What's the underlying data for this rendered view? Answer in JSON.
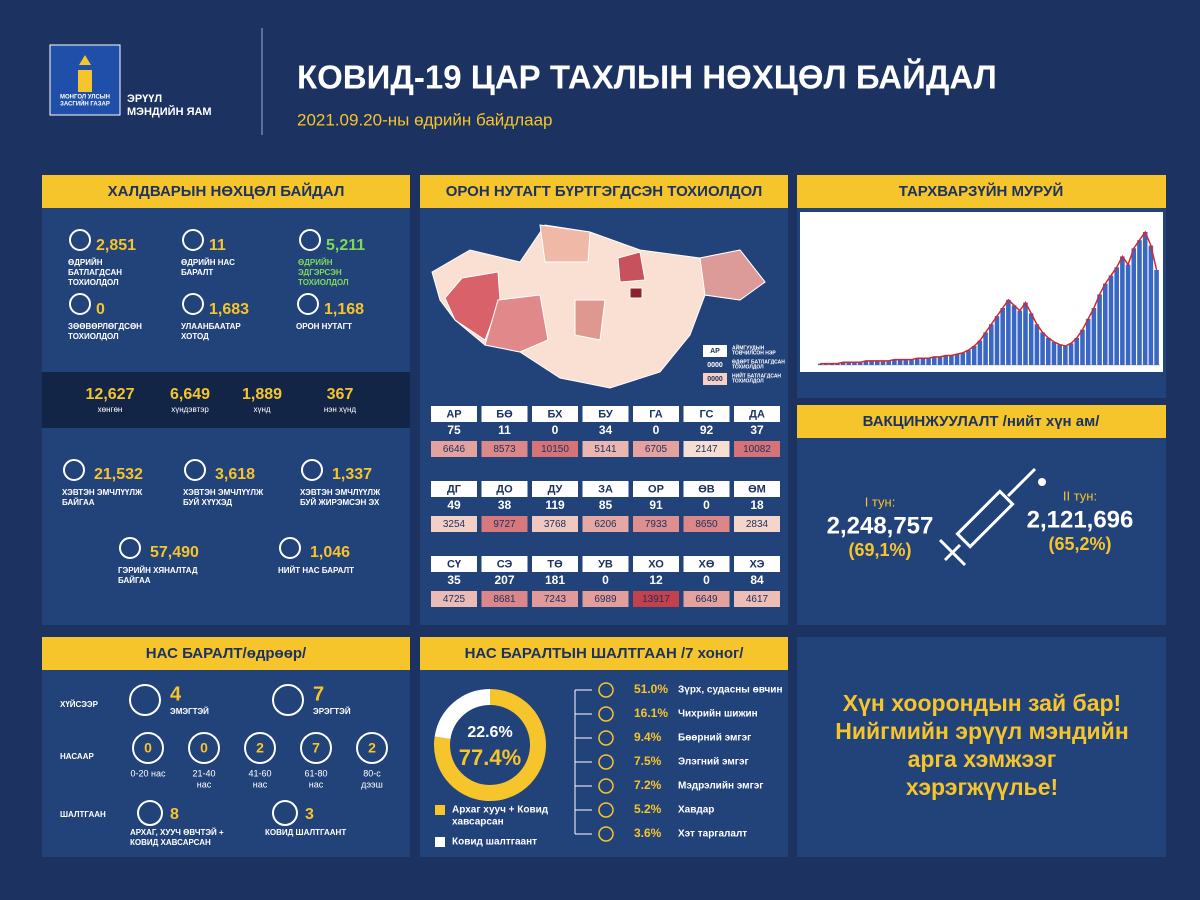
{
  "header": {
    "gov": [
      "МОНГОЛ УЛСЫН",
      "ЗАСГИЙН ГАЗАР"
    ],
    "ministry": [
      "ЭРҮҮЛ",
      "МЭНДИЙН ЯАМ"
    ],
    "title": "КОВИД-19 ЦАР ТАХЛЫН НӨХЦӨЛ БАЙДАЛ",
    "subtitle": "2021.09.20-ны өдрийн байдлаар"
  },
  "situation": {
    "title": "ХАЛДВАРЫН НӨХЦӨЛ БАЙДАЛ",
    "top": [
      {
        "value": "2,851",
        "label": [
          "ӨДРИЙН",
          "БАТЛАГДСАН",
          "ТОХИОЛДОЛ"
        ]
      },
      {
        "value": "11",
        "label": [
          "ӨДРИЙН НАС",
          "БАРАЛТ"
        ]
      },
      {
        "value": "5,211",
        "label": [
          "ӨДРИЙН",
          "ЭДГЭРСЭН",
          "ТОХИОЛДОЛ"
        ]
      },
      {
        "value": "0",
        "label": [
          "ЗӨӨВӨРЛӨГДСӨН",
          "ТОХИОЛДОЛ"
        ]
      },
      {
        "value": "1,683",
        "label": [
          "УЛААНБААТАР",
          "ХОТОД"
        ]
      },
      {
        "value": "1,168",
        "label": [
          "ОРОН НУТАГТ"
        ]
      }
    ],
    "severity": [
      {
        "value": "12,627",
        "label": "хөнгөн"
      },
      {
        "value": "6,649",
        "label": "хүндэвтэр"
      },
      {
        "value": "1,889",
        "label": "хүнд"
      },
      {
        "value": "367",
        "label": "нэн хүнд"
      }
    ],
    "care": [
      {
        "value": "21,532",
        "label": [
          "ХЭВТЭН ЭМЧЛҮҮЛЖ",
          "БАЙГАА"
        ]
      },
      {
        "value": "3,618",
        "label": [
          "ХЭВТЭН ЭМЧЛҮҮЛЖ",
          "БУЙ ХҮҮХЭД"
        ]
      },
      {
        "value": "1,337",
        "label": [
          "ХЭВТЭН ЭМЧЛҮҮЛЖ",
          "БУЙ ЖИРЭМСЭН ЭХ"
        ]
      },
      {
        "value": "57,490",
        "label": [
          "ГЭРИЙН ХЯНАЛТАД",
          "БАЙГАА"
        ]
      },
      {
        "value": "1,046",
        "label": [
          "НИЙТ НАС БАРАЛТ"
        ]
      }
    ]
  },
  "regional": {
    "title": "ОРОН НУТАГТ БҮРТГЭГДСЭН ТОХИОЛДОЛ",
    "legend": [
      {
        "box": "АР",
        "text": [
          "АЙМГУУДЫН",
          "ТОВЧИЛСОН НЭР"
        ]
      },
      {
        "box": "0000",
        "text": [
          "ӨДӨРТ БАТЛАГДСАН",
          "ТОХИОЛДОЛ"
        ]
      },
      {
        "box": "0000",
        "text": [
          "НИЙТ БАТЛАГДСАН",
          "ТОХИОЛДОЛ"
        ]
      }
    ],
    "aimags": [
      {
        "code": "АР",
        "daily": 75,
        "total": 6646
      },
      {
        "code": "БӨ",
        "daily": 11,
        "total": 8573
      },
      {
        "code": "БХ",
        "daily": 0,
        "total": 10150
      },
      {
        "code": "БУ",
        "daily": 34,
        "total": 5141
      },
      {
        "code": "ГА",
        "daily": 0,
        "total": 6705
      },
      {
        "code": "ГС",
        "daily": 92,
        "total": 2147
      },
      {
        "code": "ДА",
        "daily": 37,
        "total": 10082
      },
      {
        "code": "ДГ",
        "daily": 49,
        "total": 3254
      },
      {
        "code": "ДО",
        "daily": 38,
        "total": 9727
      },
      {
        "code": "ДУ",
        "daily": 119,
        "total": 3768
      },
      {
        "code": "ЗА",
        "daily": 85,
        "total": 6206
      },
      {
        "code": "ОР",
        "daily": 91,
        "total": 7933
      },
      {
        "code": "ӨВ",
        "daily": 0,
        "total": 8650
      },
      {
        "code": "ӨМ",
        "daily": 18,
        "total": 2834
      },
      {
        "code": "СҮ",
        "daily": 35,
        "total": 4725
      },
      {
        "code": "СЭ",
        "daily": 207,
        "total": 8681
      },
      {
        "code": "ТӨ",
        "daily": 181,
        "total": 7243
      },
      {
        "code": "УВ",
        "daily": 0,
        "total": 6989
      },
      {
        "code": "ХО",
        "daily": 12,
        "total": 13917
      },
      {
        "code": "ХӨ",
        "daily": 0,
        "total": 6649
      },
      {
        "code": "ХЭ",
        "daily": 84,
        "total": 4617
      }
    ]
  },
  "epicurve": {
    "title": "ТАРХВАРЗҮЙН МУРУЙ",
    "bar_color": "#3a66c4",
    "line_color": "#d9262c",
    "values": [
      1,
      1,
      1,
      1,
      2,
      2,
      2,
      2,
      3,
      3,
      3,
      3,
      3,
      4,
      4,
      4,
      4,
      5,
      5,
      5,
      6,
      6,
      7,
      7,
      8,
      9,
      11,
      14,
      18,
      24,
      30,
      36,
      42,
      48,
      44,
      40,
      46,
      38,
      30,
      24,
      20,
      17,
      15,
      14,
      16,
      20,
      26,
      34,
      42,
      52,
      60,
      66,
      72,
      80,
      74,
      86,
      92,
      98,
      88,
      70
    ]
  },
  "vaccination": {
    "title": "ВАКЦИНЖУУЛАЛТ /нийт хүн ам/",
    "doses": [
      {
        "label": "I тун:",
        "value": "2,248,757",
        "percent": "(69,1%)"
      },
      {
        "label": "II тун:",
        "value": "2,121,696",
        "percent": "(65,2%)"
      }
    ]
  },
  "deaths": {
    "title": "НАС БАРАЛТ/өдрөөр/",
    "rows": [
      "ХҮЙСЭЭР",
      "НАСААР",
      "ШАЛТГААН"
    ],
    "sex": [
      {
        "value": "4",
        "label": "ЭМЭГТЭЙ"
      },
      {
        "value": "7",
        "label": "ЭРЭГТЭЙ"
      }
    ],
    "age": [
      {
        "value": "0",
        "label": [
          "0-20 нас"
        ]
      },
      {
        "value": "0",
        "label": [
          "21-40",
          "нас"
        ]
      },
      {
        "value": "2",
        "label": [
          "41-60",
          "нас"
        ]
      },
      {
        "value": "7",
        "label": [
          "61-80",
          "нас"
        ]
      },
      {
        "value": "2",
        "label": [
          "80-с",
          "дээш"
        ]
      }
    ],
    "cause": [
      {
        "value": "8",
        "label": [
          "АРХАГ, ХУУЧ ӨВЧТЭЙ +",
          "КОВИД ХАВСАРСАН"
        ]
      },
      {
        "value": "3",
        "label": [
          "КОВИД ШАЛТГААНТ"
        ]
      }
    ]
  },
  "causes": {
    "title": "НАС БАРАЛТЫН ШАЛТГААН /7 хоног/",
    "donut": [
      {
        "name": [
          "Архаг хууч + Ковид",
          "хавсарсан"
        ],
        "value": 77.4,
        "value_label": "77.4%",
        "color": "#f6c42b"
      },
      {
        "name": [
          "Ковид шалтгаант"
        ],
        "value": 22.6,
        "value_label": "22.6%",
        "color": "#ffffff"
      }
    ],
    "list": [
      {
        "value": "51.0%",
        "label": "Зүрх, судасны өвчин"
      },
      {
        "value": "16.1%",
        "label": "Чихрийн шижин"
      },
      {
        "value": "9.4%",
        "label": "Бөөрний эмгэг"
      },
      {
        "value": "7.5%",
        "label": "Элэгний эмгэг"
      },
      {
        "value": "7.2%",
        "label": "Мэдрэлийн эмгэг"
      },
      {
        "value": "5.2%",
        "label": "Хавдар"
      },
      {
        "value": "3.6%",
        "label": "Хэт таргалалт"
      }
    ]
  },
  "slogan": [
    "Хүн хоорондын зай бар!",
    "Нийгмийн эрүүл мэндийн",
    "арга хэмжээг",
    "хэрэгжүүлье!"
  ]
}
